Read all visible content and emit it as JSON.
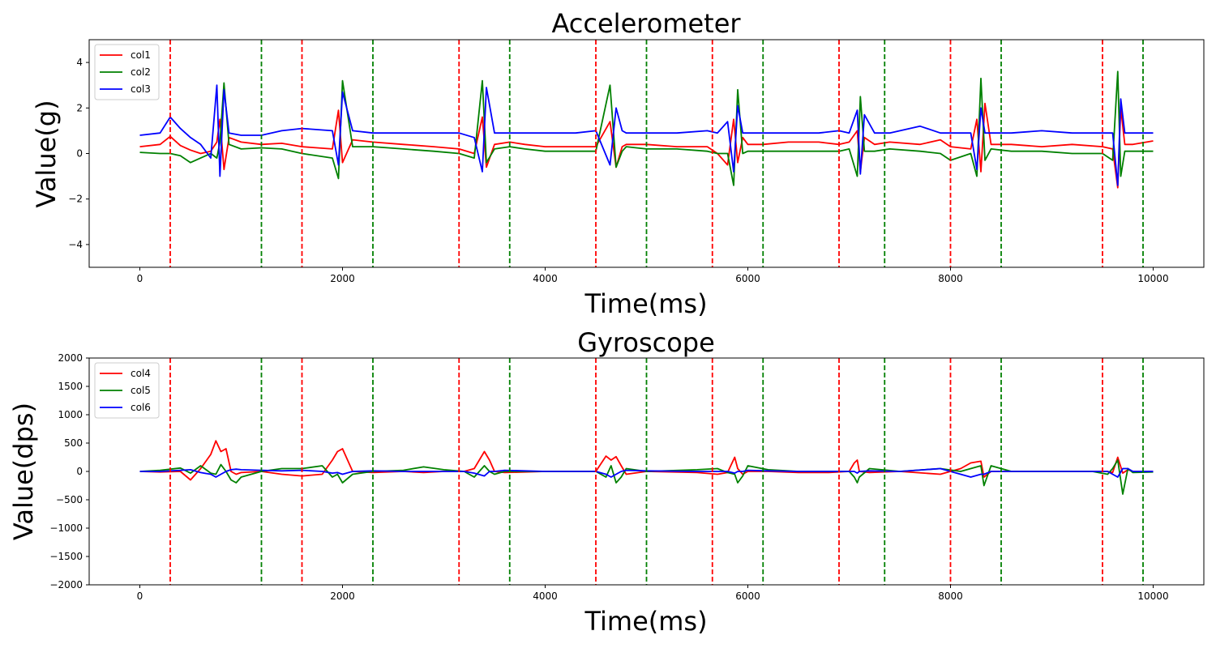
{
  "chart_data": [
    {
      "type": "line",
      "title": "Accelerometer",
      "xlabel": "Time(ms)",
      "ylabel": "Value(g)",
      "xlim": [
        -500,
        10500
      ],
      "ylim": [
        -5,
        5
      ],
      "xticks": [
        0,
        2000,
        4000,
        6000,
        8000,
        10000
      ],
      "yticks": [
        -4,
        -2,
        0,
        2,
        4
      ],
      "grid": false,
      "legend": "top-left",
      "x": [
        0,
        200,
        300,
        400,
        500,
        600,
        700,
        760,
        790,
        830,
        880,
        1000,
        1200,
        1400,
        1600,
        1900,
        1960,
        2000,
        2100,
        2300,
        2600,
        2900,
        3150,
        3300,
        3380,
        3420,
        3500,
        3650,
        3800,
        4000,
        4300,
        4500,
        4640,
        4700,
        4760,
        4800,
        4900,
        5000,
        5300,
        5600,
        5700,
        5800,
        5860,
        5900,
        5950,
        6000,
        6150,
        6400,
        6700,
        6900,
        7000,
        7080,
        7110,
        7150,
        7250,
        7400,
        7700,
        7900,
        8000,
        8200,
        8260,
        8300,
        8340,
        8400,
        8600,
        8900,
        9200,
        9500,
        9600,
        9650,
        9680,
        9720,
        9800,
        10000
      ],
      "series": [
        {
          "name": "col1",
          "color": "#ff0000",
          "values": [
            0.3,
            0.4,
            0.75,
            0.35,
            0.15,
            0.0,
            0.1,
            0.5,
            1.5,
            -0.7,
            0.7,
            0.5,
            0.4,
            0.45,
            0.3,
            0.2,
            1.9,
            -0.4,
            0.6,
            0.5,
            0.4,
            0.3,
            0.2,
            0.0,
            1.6,
            -0.6,
            0.4,
            0.5,
            0.4,
            0.3,
            0.3,
            0.3,
            1.4,
            -0.6,
            0.3,
            0.4,
            0.4,
            0.4,
            0.3,
            0.3,
            0.0,
            -0.5,
            1.5,
            -0.4,
            0.7,
            0.4,
            0.4,
            0.5,
            0.5,
            0.4,
            0.5,
            1.0,
            -0.8,
            0.7,
            0.4,
            0.5,
            0.4,
            0.6,
            0.3,
            0.2,
            1.5,
            -0.8,
            2.2,
            0.4,
            0.4,
            0.3,
            0.4,
            0.3,
            0.2,
            -1.5,
            2.0,
            0.4,
            0.4,
            0.55
          ]
        },
        {
          "name": "col2",
          "color": "#008000",
          "values": [
            0.05,
            0.0,
            0.0,
            -0.1,
            -0.4,
            -0.2,
            0.0,
            -0.2,
            0.5,
            3.1,
            0.4,
            0.2,
            0.25,
            0.2,
            0.0,
            -0.2,
            -1.1,
            3.2,
            0.3,
            0.3,
            0.2,
            0.1,
            0.0,
            -0.2,
            3.2,
            -0.4,
            0.2,
            0.3,
            0.2,
            0.1,
            0.1,
            0.1,
            3.0,
            -0.6,
            0.1,
            0.3,
            0.25,
            0.2,
            0.2,
            0.1,
            0.0,
            0.0,
            -1.4,
            2.8,
            0.0,
            0.1,
            0.1,
            0.1,
            0.1,
            0.1,
            0.2,
            -1.0,
            2.5,
            0.1,
            0.1,
            0.2,
            0.1,
            0.0,
            -0.3,
            0.0,
            -1.0,
            3.3,
            -0.3,
            0.2,
            0.1,
            0.1,
            0.0,
            0.0,
            -0.3,
            3.6,
            -1.0,
            0.1,
            0.1,
            0.1
          ]
        },
        {
          "name": "col3",
          "color": "#0000ff",
          "values": [
            0.8,
            0.9,
            1.6,
            1.1,
            0.7,
            0.4,
            -0.2,
            3.0,
            -1.0,
            2.8,
            0.9,
            0.8,
            0.8,
            1.0,
            1.1,
            1.0,
            -0.5,
            2.7,
            1.0,
            0.9,
            0.9,
            0.9,
            0.9,
            0.7,
            -0.8,
            2.9,
            0.9,
            0.9,
            0.9,
            0.9,
            0.9,
            1.0,
            -0.5,
            2.0,
            1.0,
            0.9,
            0.9,
            0.9,
            0.9,
            1.0,
            0.9,
            1.4,
            -0.8,
            2.1,
            0.9,
            0.9,
            0.9,
            0.9,
            0.9,
            1.0,
            0.9,
            1.9,
            -0.9,
            1.7,
            0.9,
            0.9,
            1.2,
            0.9,
            0.9,
            0.9,
            -0.7,
            2.0,
            0.9,
            0.9,
            0.9,
            1.0,
            0.9,
            0.9,
            0.9,
            -1.4,
            2.4,
            0.9,
            0.9,
            0.9
          ]
        }
      ],
      "markers": {
        "red": [
          300,
          1600,
          3150,
          4500,
          5650,
          6900,
          8000,
          9500
        ],
        "green": [
          1200,
          2300,
          3650,
          5000,
          6150,
          7350,
          8500,
          9900
        ]
      }
    },
    {
      "type": "line",
      "title": "Gyroscope",
      "xlabel": "Time(ms)",
      "ylabel": "Value(dps)",
      "xlim": [
        -500,
        10500
      ],
      "ylim": [
        -2000,
        2000
      ],
      "xticks": [
        0,
        2000,
        4000,
        6000,
        8000,
        10000
      ],
      "yticks": [
        -2000,
        -1500,
        -1000,
        -500,
        0,
        500,
        1000,
        1500,
        2000
      ],
      "grid": false,
      "legend": "top-left",
      "x": [
        0,
        200,
        400,
        500,
        600,
        700,
        750,
        800,
        850,
        900,
        950,
        1000,
        1200,
        1400,
        1600,
        1800,
        1900,
        1950,
        2000,
        2100,
        2300,
        2600,
        2800,
        3000,
        3200,
        3300,
        3400,
        3450,
        3500,
        3600,
        4000,
        4500,
        4600,
        4650,
        4700,
        4750,
        4800,
        5000,
        5500,
        5700,
        5800,
        5870,
        5900,
        5950,
        6000,
        6200,
        6500,
        6800,
        7000,
        7050,
        7080,
        7100,
        7200,
        7500,
        7900,
        8100,
        8200,
        8300,
        8330,
        8400,
        8600,
        9000,
        9400,
        9550,
        9600,
        9650,
        9700,
        9750,
        9800,
        10000
      ],
      "series": [
        {
          "name": "col4",
          "color": "#ff0000",
          "values": [
            0,
            -10,
            0,
            -150,
            50,
            300,
            540,
            350,
            400,
            0,
            -50,
            -20,
            0,
            -50,
            -80,
            -50,
            200,
            350,
            400,
            0,
            -20,
            0,
            -20,
            0,
            0,
            50,
            350,
            200,
            0,
            -20,
            0,
            0,
            270,
            200,
            260,
            100,
            -50,
            0,
            -20,
            -50,
            -20,
            250,
            50,
            -50,
            0,
            0,
            -20,
            -20,
            0,
            150,
            200,
            0,
            -20,
            0,
            -50,
            50,
            150,
            180,
            -100,
            0,
            0,
            0,
            0,
            0,
            -20,
            250,
            -30,
            30,
            0,
            0
          ]
        },
        {
          "name": "col5",
          "color": "#008000",
          "values": [
            0,
            20,
            60,
            -30,
            100,
            -30,
            -50,
            120,
            0,
            -150,
            -200,
            -100,
            0,
            50,
            50,
            100,
            -100,
            -50,
            -200,
            -50,
            0,
            20,
            80,
            30,
            0,
            -100,
            100,
            0,
            -50,
            0,
            0,
            0,
            -100,
            100,
            -200,
            -100,
            50,
            0,
            30,
            50,
            -20,
            -50,
            -200,
            -80,
            100,
            30,
            0,
            0,
            0,
            -100,
            -200,
            -100,
            50,
            0,
            50,
            0,
            50,
            100,
            -250,
            100,
            0,
            0,
            0,
            -50,
            50,
            200,
            -400,
            50,
            -20,
            -10
          ]
        },
        {
          "name": "col6",
          "color": "#0000ff",
          "values": [
            0,
            0,
            20,
            30,
            -20,
            -50,
            -100,
            -50,
            0,
            30,
            40,
            30,
            20,
            10,
            20,
            0,
            -30,
            -20,
            -50,
            0,
            10,
            0,
            0,
            0,
            0,
            -30,
            -80,
            0,
            0,
            20,
            0,
            0,
            -50,
            -100,
            -50,
            0,
            20,
            10,
            0,
            0,
            0,
            -30,
            0,
            0,
            20,
            10,
            0,
            0,
            0,
            0,
            -30,
            0,
            10,
            0,
            50,
            -50,
            -100,
            -50,
            -50,
            0,
            0,
            0,
            0,
            0,
            -50,
            -100,
            50,
            50,
            0,
            0
          ]
        }
      ],
      "markers": {
        "red": [
          300,
          1600,
          3150,
          4500,
          5650,
          6900,
          8000,
          9500
        ],
        "green": [
          1200,
          2300,
          3650,
          5000,
          6150,
          7350,
          8500,
          9900
        ]
      }
    }
  ]
}
